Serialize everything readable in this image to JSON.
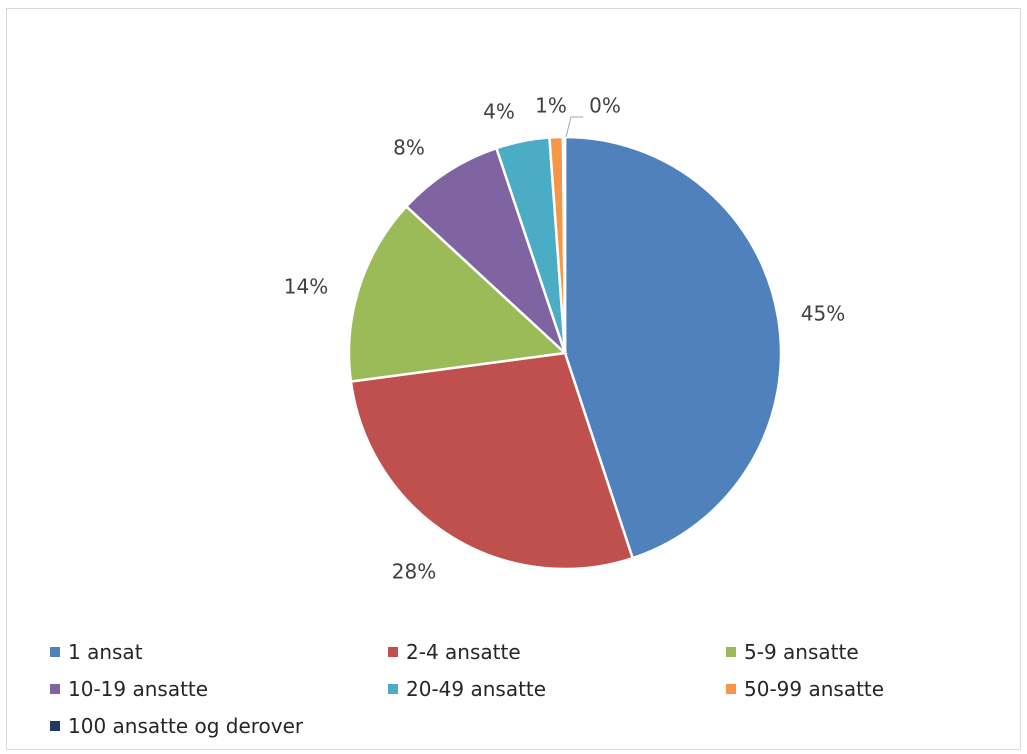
{
  "chart_data": {
    "type": "pie",
    "categories": [
      "1 ansat",
      "2-4 ansatte",
      "5-9 ansatte",
      "10-19 ansatte",
      "20-49 ansatte",
      "50-99 ansatte",
      "100 ansatte og derover"
    ],
    "values": [
      45,
      28,
      14,
      8,
      4,
      1,
      0
    ],
    "data_labels": [
      "45%",
      "28%",
      "14%",
      "8%",
      "4%",
      "1%",
      "0%"
    ],
    "colors": [
      "#4f81bd",
      "#c0504d",
      "#9bbb59",
      "#8064a2",
      "#4bacc6",
      "#f79646",
      "#1f3864"
    ],
    "legend_position": "bottom"
  }
}
